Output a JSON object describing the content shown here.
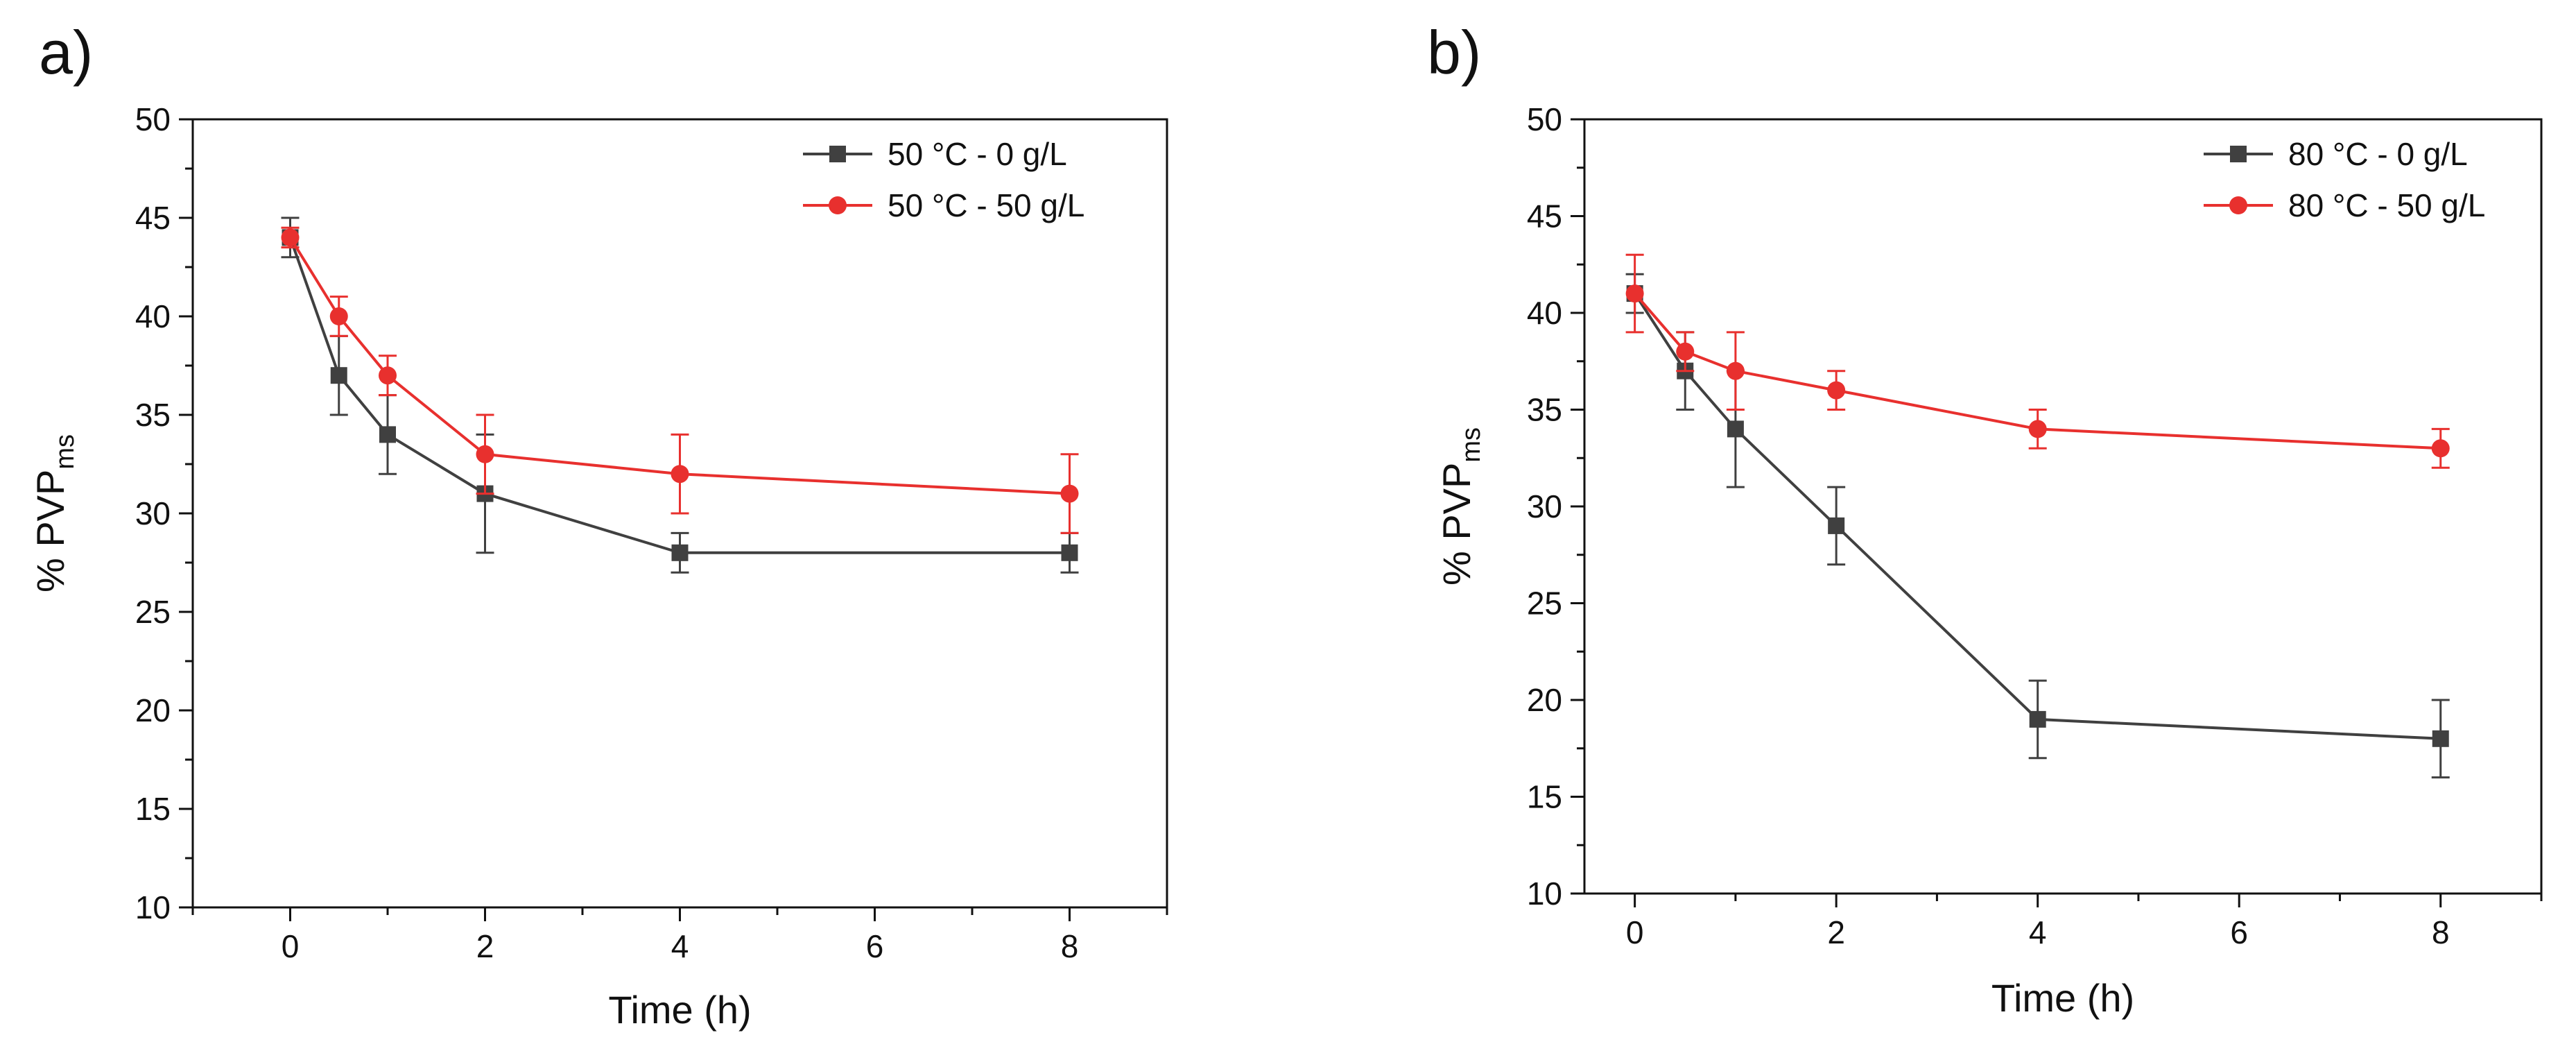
{
  "chart_data": [
    {
      "panel_label": "a)",
      "type": "line",
      "x": [
        0,
        0.5,
        1,
        2,
        4,
        8
      ],
      "xlabel": "Time (h)",
      "ylabel": {
        "main": "% PVP",
        "subscript": "ms"
      },
      "xlim": [
        -1,
        9
      ],
      "ylim": [
        10,
        50
      ],
      "xticks": [
        0,
        2,
        4,
        6,
        8
      ],
      "xtick_labels": [
        "0",
        "2",
        "4",
        "6",
        "8"
      ],
      "yticks": [
        10,
        15,
        20,
        25,
        30,
        35,
        40,
        45,
        50
      ],
      "ytick_labels": [
        "10",
        "15",
        "20",
        "25",
        "30",
        "35",
        "40",
        "45",
        "50"
      ],
      "legend_position": "top-right",
      "series": [
        {
          "name": "50 °C - 0 g/L",
          "color": "#404040",
          "marker": "square",
          "values": [
            44,
            37,
            34,
            31,
            28,
            28
          ],
          "errors": [
            1,
            2,
            2,
            3,
            1,
            1
          ]
        },
        {
          "name": "50 °C - 50 g/L",
          "color": "#e8302e",
          "marker": "circle",
          "values": [
            44,
            40,
            37,
            33,
            32,
            31
          ],
          "errors": [
            0.5,
            1,
            1,
            2,
            2,
            2
          ]
        }
      ]
    },
    {
      "panel_label": "b)",
      "type": "line",
      "x": [
        0,
        0.5,
        1,
        2,
        4,
        8
      ],
      "xlabel": "Time (h)",
      "ylabel": {
        "main": "% PVP",
        "subscript": "ms"
      },
      "xlim": [
        -0.5,
        9
      ],
      "ylim": [
        10,
        50
      ],
      "xticks": [
        0,
        2,
        4,
        6,
        8
      ],
      "xtick_labels": [
        "0",
        "2",
        "4",
        "6",
        "8"
      ],
      "yticks": [
        10,
        15,
        20,
        25,
        30,
        35,
        40,
        45,
        50
      ],
      "ytick_labels": [
        "10",
        "15",
        "20",
        "25",
        "30",
        "35",
        "40",
        "45",
        "50"
      ],
      "legend_position": "top-right",
      "series": [
        {
          "name": "80 °C - 0 g/L",
          "color": "#404040",
          "marker": "square",
          "values": [
            41,
            37,
            34,
            29,
            19,
            18
          ],
          "errors": [
            1,
            2,
            3,
            2,
            2,
            2
          ]
        },
        {
          "name": "80 °C - 50 g/L",
          "color": "#e8302e",
          "marker": "circle",
          "values": [
            41,
            38,
            37,
            36,
            34,
            33
          ],
          "errors": [
            2,
            1,
            2,
            1,
            1,
            1
          ]
        }
      ]
    }
  ]
}
